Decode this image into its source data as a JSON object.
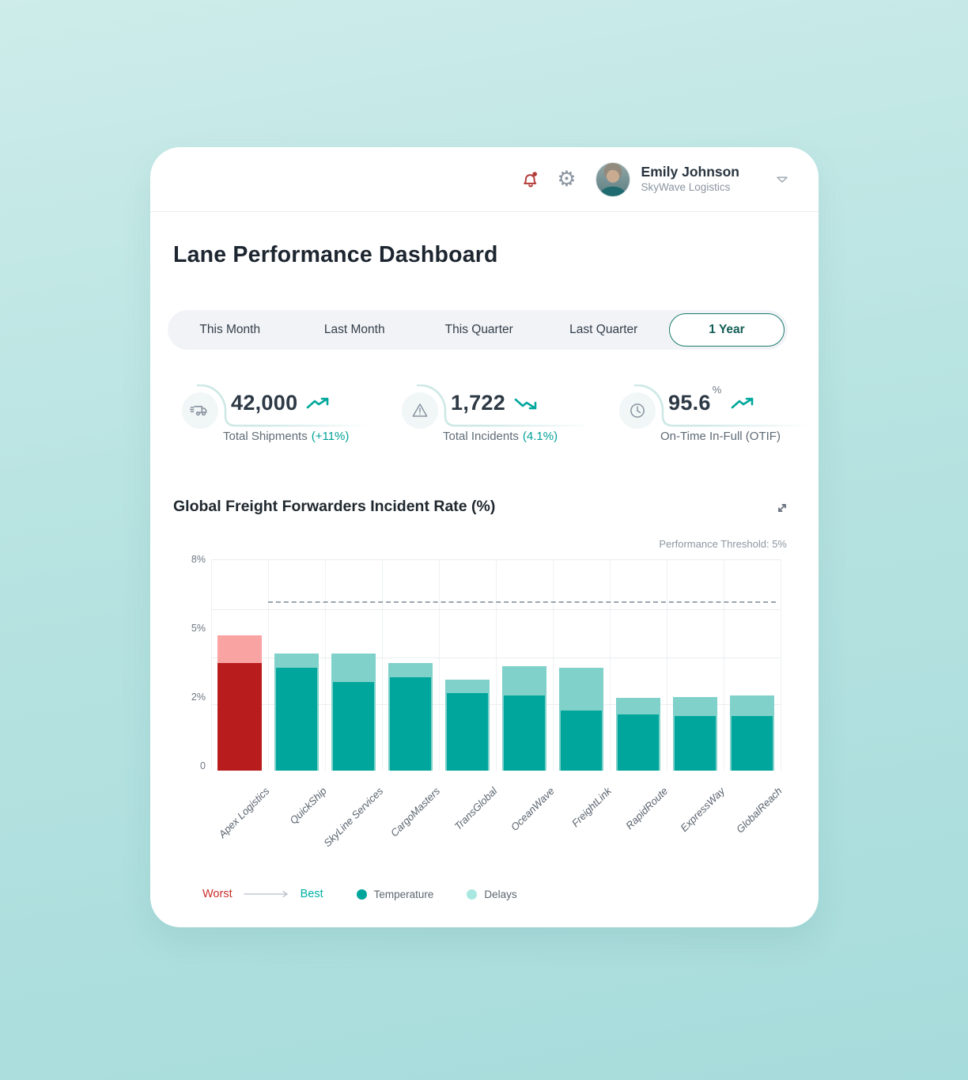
{
  "header": {
    "user_name": "Emily Johnson",
    "user_company": "SkyWave Logistics"
  },
  "page": {
    "title": "Lane Performance Dashboard"
  },
  "tabs": {
    "items": [
      "This Month",
      "Last Month",
      "This Quarter",
      "Last Quarter",
      "1 Year"
    ],
    "active": "1 Year"
  },
  "kpis": [
    {
      "icon": "truck-icon",
      "value": "42,000",
      "unit": "",
      "label": "Total Shipments",
      "delta": "(+11%)",
      "trend": "up"
    },
    {
      "icon": "warning-icon",
      "value": "1,722",
      "unit": "",
      "label": "Total Incidents",
      "delta": "(4.1%)",
      "trend": "down"
    },
    {
      "icon": "clock-icon",
      "value": "95.6",
      "unit": "%",
      "label": "On-Time In-Full (OTIF)",
      "delta": "",
      "trend": "up"
    }
  ],
  "chart": {
    "title": "Global Freight Forwarders Incident Rate (%)",
    "threshold_label": "Performance Threshold: 5%",
    "y_ticks": [
      "8%",
      "5%",
      "2%",
      "0"
    ],
    "legend": {
      "worst": "Worst",
      "best": "Best",
      "series": [
        {
          "name": "Temperature",
          "dot_color": "#00A69B"
        },
        {
          "name": "Delays",
          "dot_color": "#A9E8E0"
        }
      ]
    }
  },
  "chart_data": {
    "type": "bar",
    "stacked": true,
    "title": "Global Freight Forwarders Incident Rate (%)",
    "categories": [
      "Apex Logistics",
      "QuickShip",
      "SkyLine Services",
      "CargoMasters",
      "TransGlobal",
      "OceanWave",
      "FreightLink",
      "RapidRoute",
      "ExpressWay",
      "GlobalReach"
    ],
    "series": [
      {
        "name": "Temperature",
        "color": "#00A69B",
        "values": [
          3.5,
          3.3,
          2.7,
          2.9,
          2.2,
          2.1,
          1.65,
          1.55,
          1.5,
          1.5
        ]
      },
      {
        "name": "Delays",
        "color": "#7FD1CA",
        "values": [
          1.2,
          0.6,
          1.2,
          0.6,
          0.6,
          1.25,
          1.65,
          0.45,
          0.55,
          0.6
        ]
      }
    ],
    "highlight": {
      "category": "Apex Logistics",
      "index": 0,
      "temperature_color": "#B91C1C",
      "delays_color": "#F9A3A2"
    },
    "threshold_value": 5,
    "ylim": [
      0,
      8
    ],
    "y_tick_labels": [
      "0",
      "2%",
      "5%",
      "8%"
    ],
    "grid": true,
    "sort_note": "Worst to Best"
  },
  "colors": {
    "accent_teal": "#00A79C",
    "active_tab_border": "#1B7A6E",
    "bell_red": "#B23B38",
    "worst_text": "#C92F2A",
    "best_text": "#00B0A4",
    "threshold_line": "#9AA5B1"
  }
}
